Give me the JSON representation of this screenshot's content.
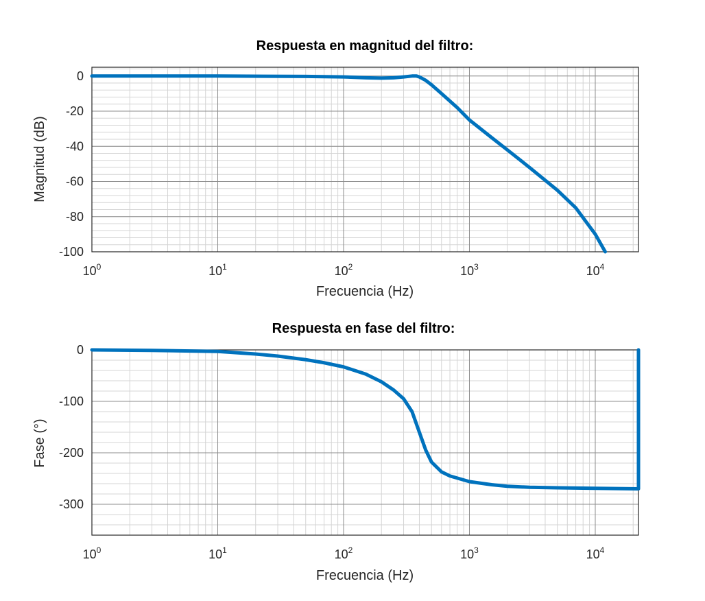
{
  "chart_data": [
    {
      "type": "line",
      "title": "Respuesta en magnitud del filtro:",
      "xlabel": "Frecuencia (Hz)",
      "ylabel": "Magnitud (dB)",
      "xscale": "log",
      "xlim": [
        1,
        22050
      ],
      "ylim": [
        -100,
        5
      ],
      "xticks": [
        1,
        10,
        100,
        1000,
        10000
      ],
      "yticks": [
        0,
        -20,
        -40,
        -60,
        -80,
        -100
      ],
      "ytick_labels": [
        "0",
        "-20",
        "-40",
        "-60",
        "-80",
        "-100"
      ],
      "grid": true,
      "color": "#0072BD",
      "x": [
        1,
        10,
        50,
        100,
        150,
        200,
        250,
        300,
        350,
        380,
        400,
        450,
        500,
        600,
        800,
        1000,
        1500,
        2000,
        3000,
        5000,
        7000,
        10000,
        12000
      ],
      "y": [
        0,
        0,
        -0.2,
        -0.5,
        -1.0,
        -1.2,
        -1.0,
        -0.5,
        0,
        0,
        -0.5,
        -2.5,
        -5,
        -10,
        -18,
        -25,
        -35,
        -42,
        -52,
        -65,
        -75,
        -90,
        -100
      ]
    },
    {
      "type": "line",
      "title": "Respuesta en fase del filtro:",
      "xlabel": "Frecuencia (Hz)",
      "ylabel": "Fase (°)",
      "xscale": "log",
      "xlim": [
        1,
        22050
      ],
      "ylim": [
        -360,
        0
      ],
      "xticks": [
        1,
        10,
        100,
        1000,
        10000
      ],
      "yticks": [
        0,
        -100,
        -200,
        -300
      ],
      "ytick_labels": [
        "0",
        "-100",
        "-200",
        "-300"
      ],
      "grid": true,
      "color": "#0072BD",
      "x": [
        1,
        3,
        10,
        20,
        30,
        50,
        70,
        100,
        150,
        200,
        250,
        300,
        350,
        400,
        450,
        500,
        600,
        700,
        1000,
        1500,
        2000,
        3000,
        5000,
        10000,
        22050,
        22050
      ],
      "y": [
        0,
        -1,
        -3,
        -8,
        -12,
        -19,
        -25,
        -33,
        -47,
        -62,
        -78,
        -95,
        -120,
        -160,
        -195,
        -218,
        -237,
        -245,
        -256,
        -262,
        -265,
        -267,
        -268,
        -269,
        -270,
        0
      ]
    }
  ]
}
